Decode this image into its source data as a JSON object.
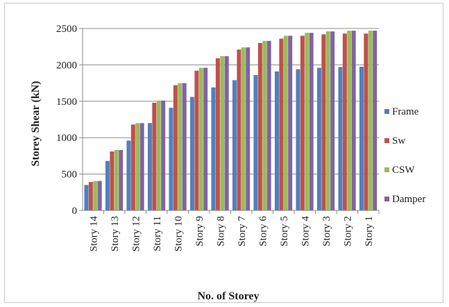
{
  "chart_data": {
    "type": "bar",
    "title": "",
    "xlabel": "No. of Storey",
    "ylabel": "Storey Shear (kN)",
    "ylim": [
      0,
      2500
    ],
    "yticks": [
      0,
      500,
      1000,
      1500,
      2000,
      2500
    ],
    "grid": true,
    "legend_position": "right",
    "categories": [
      "Story 14",
      "Story 13",
      "Story 12",
      "Story 11",
      "Story 10",
      "Story 9",
      "Story 8",
      "Story 7",
      "Story 6",
      "Story 5",
      "Story 4",
      "Story 3",
      "Story 2",
      "Story 1"
    ],
    "series": [
      {
        "name": "Frame",
        "color": "#4f81bd",
        "values": [
          350,
          680,
          960,
          1200,
          1410,
          1560,
          1690,
          1790,
          1860,
          1910,
          1940,
          1960,
          1970,
          1975
        ]
      },
      {
        "name": "Sw",
        "color": "#c0504d",
        "values": [
          390,
          810,
          1180,
          1480,
          1720,
          1920,
          2090,
          2210,
          2300,
          2360,
          2400,
          2420,
          2430,
          2430
        ]
      },
      {
        "name": "CSW",
        "color": "#9bbb59",
        "values": [
          405,
          830,
          1200,
          1510,
          1750,
          1960,
          2120,
          2240,
          2330,
          2400,
          2440,
          2460,
          2470,
          2470
        ]
      },
      {
        "name": "Damper",
        "color": "#8064a2",
        "values": [
          405,
          830,
          1200,
          1510,
          1750,
          1960,
          2120,
          2240,
          2330,
          2400,
          2440,
          2460,
          2470,
          2470
        ]
      }
    ]
  }
}
